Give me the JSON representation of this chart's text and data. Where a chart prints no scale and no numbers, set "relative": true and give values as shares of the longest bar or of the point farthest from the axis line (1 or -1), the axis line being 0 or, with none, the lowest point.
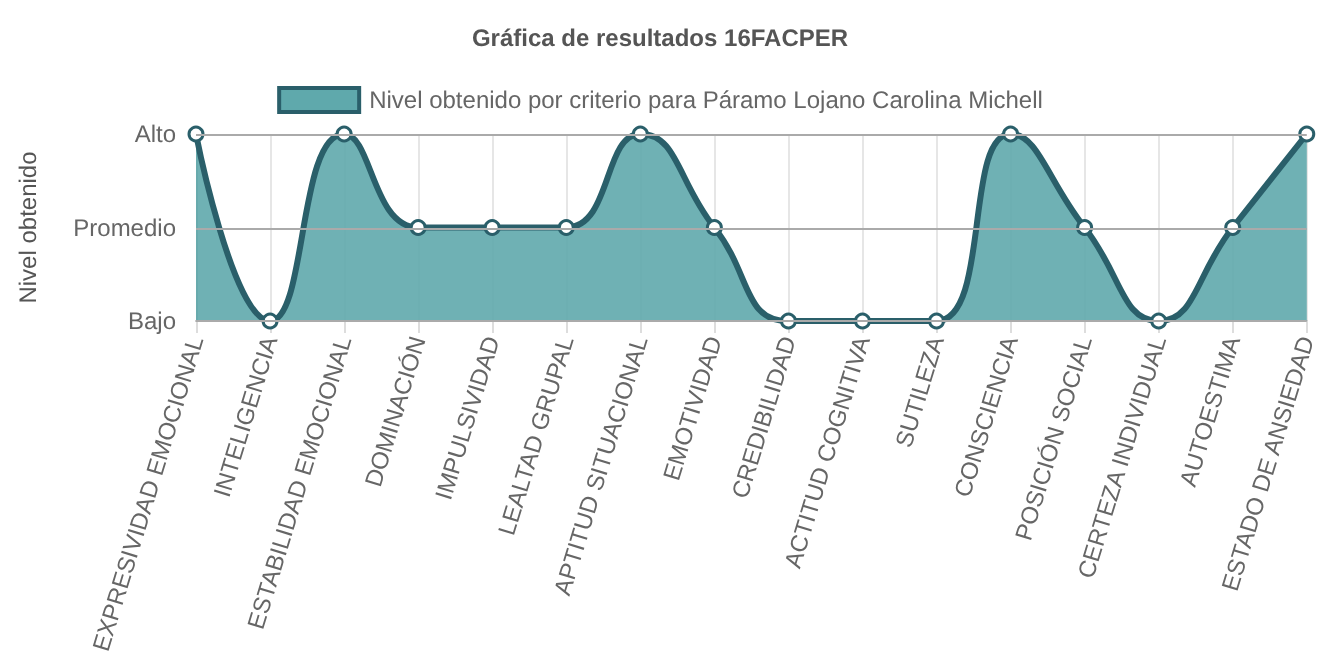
{
  "chart_data": {
    "type": "area",
    "title": "Gráfica de resultados 16FACPER",
    "ylabel": "Nivel obtenido",
    "categories": [
      "EXPRESIVIDAD EMOCIONAL",
      "INTELIGENCIA",
      "ESTABILIDAD EMOCIONAL",
      "DOMINACIÓN",
      "IMPULSIVIDAD",
      "LEALTAD GRUPAL",
      "APTITUD SITUACIONAL",
      "EMOTIVIDAD",
      "CREDIBILIDAD",
      "ACTITUD COGNITIVA",
      "SUTILEZA",
      "CONSCIENCIA",
      "POSICIÓN SOCIAL",
      "CERTEZA INDIVIDUAL",
      "AUTOESTIMA",
      "ESTADO DE ANSIEDAD"
    ],
    "series": [
      {
        "name": "Nivel obtenido por criterio para Páramo Lojano Carolina Michell",
        "color": "#2a5f6a",
        "values": [
          1,
          0,
          1,
          0.5,
          0.5,
          0.5,
          1,
          0.5,
          0,
          0,
          0,
          1,
          0.5,
          0,
          0.5,
          1
        ]
      }
    ],
    "relative": true,
    "ref_lines": [
      {
        "axis": "y",
        "value": 0,
        "label": "Bajo",
        "color": "#aaaaaa"
      },
      {
        "axis": "y",
        "value": 0.5,
        "label": "Promedio",
        "color": "#aaaaaa"
      },
      {
        "axis": "y",
        "value": 1,
        "label": "Alto",
        "color": "#aaaaaa"
      }
    ],
    "grid": "x",
    "legend": "top",
    "marker": "circle",
    "line_style": "solid"
  }
}
